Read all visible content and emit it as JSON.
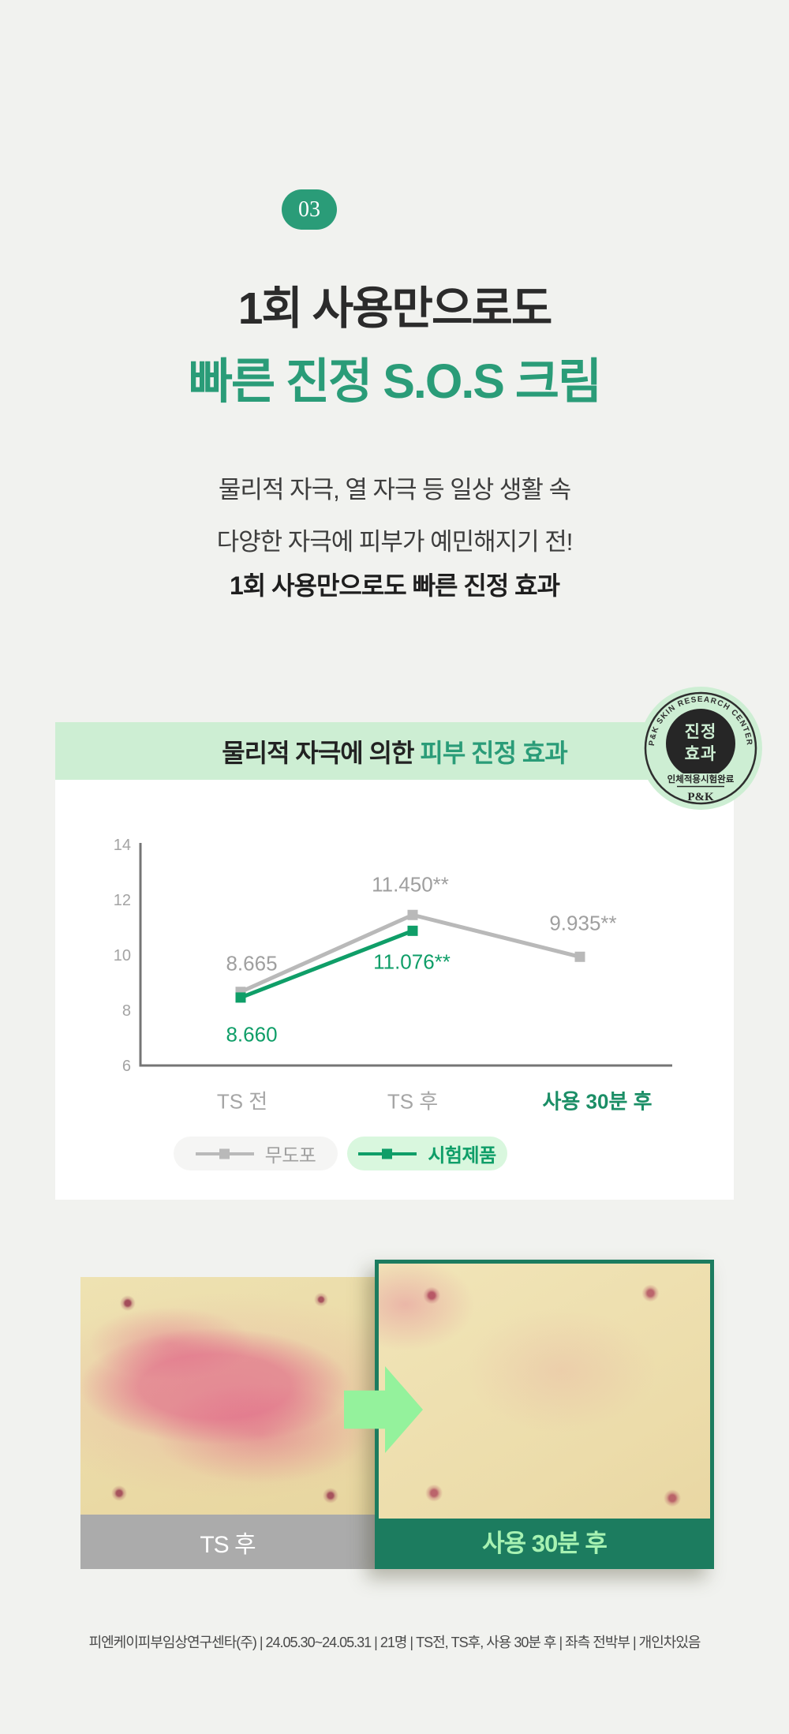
{
  "badge": {
    "label": "03"
  },
  "heading": {
    "line1": "1회 사용만으로도",
    "line2": "빠른 진정 S.O.S 크림"
  },
  "intro": {
    "line1": "물리적 자극, 열 자극 등 일상 생활 속",
    "line2": "다양한 자극에 피부가 예민해지기 전!",
    "line3": "1회 사용만으로도 빠른 진정 효과"
  },
  "panel": {
    "title_dark": "물리적 자극에 의한 ",
    "title_green": "피부 진정 효과"
  },
  "stamp": {
    "arc_text": "P&K SKIN RESEARCH CENTER",
    "center_line1": "진정",
    "center_line2": "효과",
    "band_text": "인체적용시험완료",
    "logo_text": "P&K"
  },
  "chart_data": {
    "type": "line",
    "title": "물리적 자극에 의한 피부 진정 효과",
    "categories": [
      "TS 전",
      "TS 후",
      "사용 30분 후"
    ],
    "series": [
      {
        "name": "무도포",
        "color": "#b9b9b9",
        "values": [
          8.665,
          11.45,
          9.935
        ],
        "labels": [
          "8.665",
          "11.450**",
          "9.935**"
        ]
      },
      {
        "name": "시험제품",
        "color": "#0f9e68",
        "values": [
          8.66,
          11.076,
          null
        ],
        "labels": [
          "8.660",
          "11.076**",
          ""
        ]
      }
    ],
    "ylim": [
      6,
      14
    ],
    "yticks": [
      14,
      12,
      10,
      8,
      6
    ],
    "grid": false,
    "legend_position": "bottom"
  },
  "comparison": {
    "before_label": "TS 후",
    "after_label": "사용 30분 후"
  },
  "footer": {
    "text": "피엔케이피부임상연구센타(주) | 24.05.30~24.05.31 | 21명 | TS전, TS후, 사용 30분 후 | 좌측 전박부 | 개인차있음"
  },
  "colors": {
    "page_bg": "#f1f2ef",
    "brand_green": "#2a9c78",
    "chart_green": "#0f9e68",
    "chart_gray": "#b9b9b9",
    "band_bg": "#cdeed3",
    "legend_green_bg": "#d9f7de",
    "arrow_green": "#94f29c",
    "photo_border_green": "#1c7c5f",
    "after_label_green": "#a7f2b2",
    "before_bar_gray": "#ababab"
  }
}
